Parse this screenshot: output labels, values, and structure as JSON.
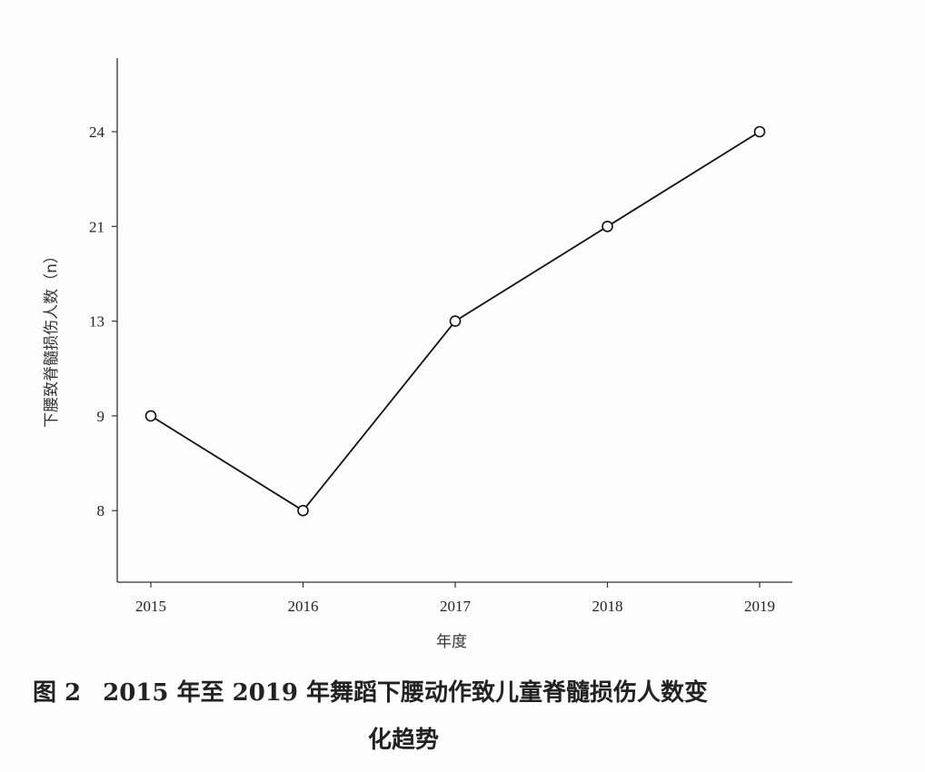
{
  "chart_data": {
    "type": "line",
    "categories": [
      "2015",
      "2016",
      "2017",
      "2018",
      "2019"
    ],
    "y_ticks": [
      "8",
      "9",
      "13",
      "21",
      "24"
    ],
    "values": [
      9,
      8,
      13,
      21,
      24
    ],
    "xlabel": "年度",
    "ylabel": "下腰致脊髓损伤人数（n）",
    "grid": false,
    "marker": "open-circle",
    "line_color": "#111111"
  },
  "caption": {
    "figure_number": "图 2",
    "line1": "2015 年至 2019 年舞蹈下腰动作致儿童脊髓损伤人数变",
    "line2": "化趋势"
  }
}
